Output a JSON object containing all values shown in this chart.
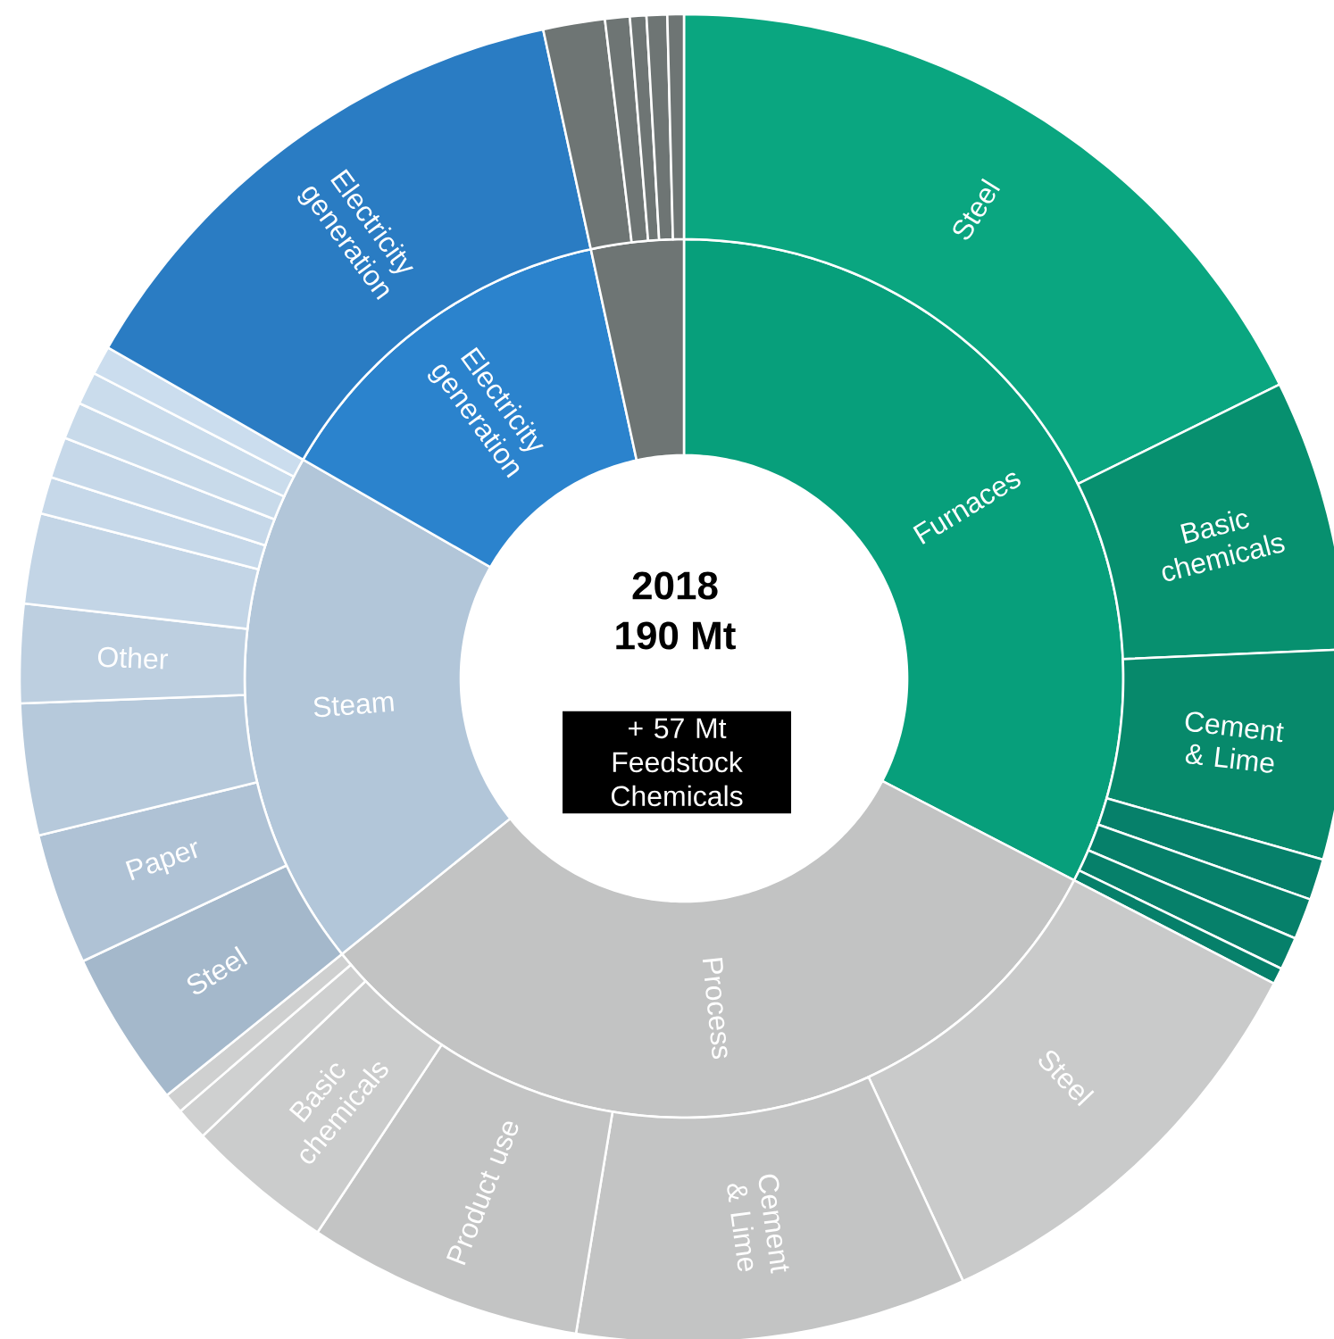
{
  "chart_data": [
    {
      "type": "donut",
      "title": "2018",
      "subtitle": "190 Mt",
      "annotations": [
        "+ 57 Mt Feedstock Chemicals"
      ],
      "categories": [
        "Furnaces",
        "Process",
        "Steam",
        "Electricity generation",
        null
      ],
      "values": [
        32.6,
        31.6,
        19.1,
        13.3,
        3.4
      ],
      "colors": [
        "#079f7b",
        "#c2c3c3",
        "#b2c6d9",
        "#2b83cd",
        "#6e7574"
      ]
    },
    {
      "type": "donut",
      "categories": [
        "Steel",
        "Basic chemicals",
        "Cement & Lime",
        null,
        null,
        null,
        null,
        "Steel",
        "Cement & Lime",
        "Product use",
        "Basic chemicals",
        null,
        null,
        "Steel",
        "Paper",
        null,
        "Other",
        null,
        null,
        null,
        null,
        null,
        null,
        "Electricity generation",
        null,
        null,
        null,
        null,
        null
      ],
      "values": [
        17.7,
        6.6,
        5.1,
        1.0,
        1.0,
        0.8,
        0.4,
        10.5,
        9.5,
        6.7,
        3.6,
        0.8,
        0.5,
        3.8,
        3.2,
        3.2,
        2.4,
        2.2,
        0.9,
        1.0,
        0.9,
        0.8,
        0.7,
        13.3,
        1.5,
        0.6,
        0.4,
        0.5,
        0.4
      ],
      "colors": [
        "#0aa680",
        "#07906f",
        "#07896b",
        "#06806a",
        "#06806a",
        "#06806a",
        "#06806a",
        "#c9caca",
        "#c3c4c4",
        "#c3c4c4",
        "#cbcccc",
        "#cfd0d0",
        "#cfd0d0",
        "#a4b8cb",
        "#afc2d5",
        "#b6c9db",
        "#bdcfe0",
        "#c3d5e6",
        "#c6d8e9",
        "#c6d8e9",
        "#c8daea",
        "#cadcec",
        "#cbddee",
        "#2a7cc3",
        "#6e7574",
        "#6e7574",
        "#6e7574",
        "#6e7574",
        "#6e7574"
      ]
    }
  ]
}
